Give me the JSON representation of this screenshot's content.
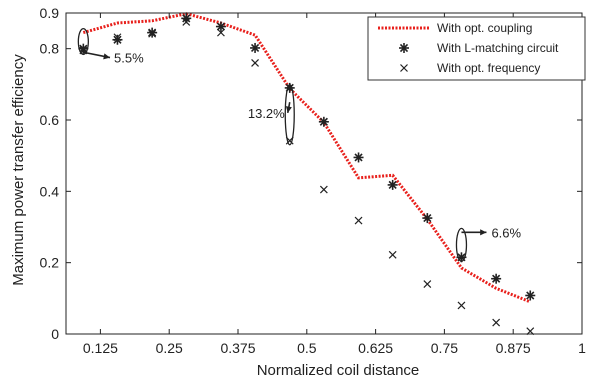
{
  "chart_data": {
    "type": "line",
    "xlabel": "Normalized coil distance",
    "ylabel": "Maximum power transfer efficiency",
    "xlim": [
      0.0625,
      1.0
    ],
    "ylim": [
      0,
      0.9
    ],
    "x_ticks": [
      0.125,
      0.25,
      0.375,
      0.5,
      0.625,
      0.75,
      0.875,
      1
    ],
    "x_tick_labels": [
      "0.125",
      "0.25",
      "0.375",
      "0.5",
      "0.625",
      "0.75",
      "0.875",
      "1"
    ],
    "y_ticks": [
      0,
      0.2,
      0.4,
      0.6,
      0.8,
      0.9
    ],
    "y_tick_labels": [
      "0",
      "0.2",
      "0.4",
      "0.6",
      "0.8",
      "0.9"
    ],
    "grid": false,
    "legend_position": "top-right",
    "series": [
      {
        "name": "With opt. coupling",
        "mark": "dotted-line",
        "color": "#e8201c",
        "x": [
          0.094,
          0.156,
          0.219,
          0.281,
          0.344,
          0.406,
          0.469,
          0.531,
          0.594,
          0.656,
          0.719,
          0.781,
          0.844,
          0.906
        ],
        "y": [
          0.845,
          0.872,
          0.878,
          0.898,
          0.872,
          0.838,
          0.688,
          0.593,
          0.438,
          0.445,
          0.322,
          0.185,
          0.128,
          0.09
        ]
      },
      {
        "name": "With L-matching circuit",
        "mark": "asterisk",
        "color": "#222222",
        "x": [
          0.094,
          0.156,
          0.219,
          0.281,
          0.344,
          0.406,
          0.469,
          0.531,
          0.594,
          0.656,
          0.719,
          0.781,
          0.844,
          0.906
        ],
        "y": [
          0.8,
          0.825,
          0.845,
          0.885,
          0.862,
          0.802,
          0.69,
          0.595,
          0.495,
          0.418,
          0.325,
          0.215,
          0.155,
          0.108
        ]
      },
      {
        "name": "With opt. frequency",
        "mark": "cross",
        "color": "#222222",
        "x": [
          0.094,
          0.156,
          0.219,
          0.281,
          0.344,
          0.406,
          0.469,
          0.531,
          0.594,
          0.656,
          0.719,
          0.781,
          0.844,
          0.906
        ],
        "y": [
          0.795,
          0.832,
          0.842,
          0.875,
          0.845,
          0.76,
          0.542,
          0.405,
          0.318,
          0.222,
          0.14,
          0.08,
          0.032,
          0.008
        ]
      }
    ],
    "annotations": [
      {
        "text": "5.5%",
        "x": 0.094,
        "y_low": 0.795,
        "y_high": 0.845
      },
      {
        "text": "13.2%",
        "x": 0.469,
        "y_low": 0.542,
        "y_high": 0.688
      },
      {
        "text": "6.6%",
        "x": 0.781,
        "y_low": 0.215,
        "y_high": 0.285
      }
    ]
  }
}
